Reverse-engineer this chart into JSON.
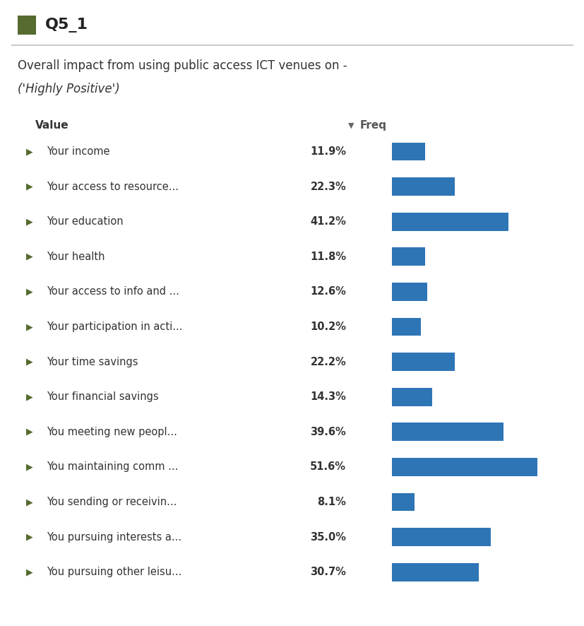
{
  "title_label": "Q5_1",
  "title_color": "#556B2F",
  "subtitle1": "Overall impact from using public access ICT venues on -",
  "subtitle2": "('Highly Positive')",
  "col_value": "Value",
  "col_freq": "Freq",
  "categories": [
    "Your income",
    "Your access to resource...",
    "Your education",
    "Your health",
    "Your access to info and ...",
    "Your participation in acti...",
    "Your time savings",
    "Your financial savings",
    "You meeting new peopl...",
    "You maintaining comm ...",
    "You sending or receivin...",
    "You pursuing interests a...",
    "You pursuing other leisu..."
  ],
  "values": [
    11.9,
    22.3,
    41.2,
    11.8,
    12.6,
    10.2,
    22.2,
    14.3,
    39.6,
    51.6,
    8.1,
    35.0,
    30.7
  ],
  "bar_color": "#2E75B6",
  "arrow_color": "#556B2F",
  "background_color": "#ffffff",
  "text_color": "#333333",
  "header_line_color": "#cccccc",
  "xlim": [
    0,
    60
  ]
}
